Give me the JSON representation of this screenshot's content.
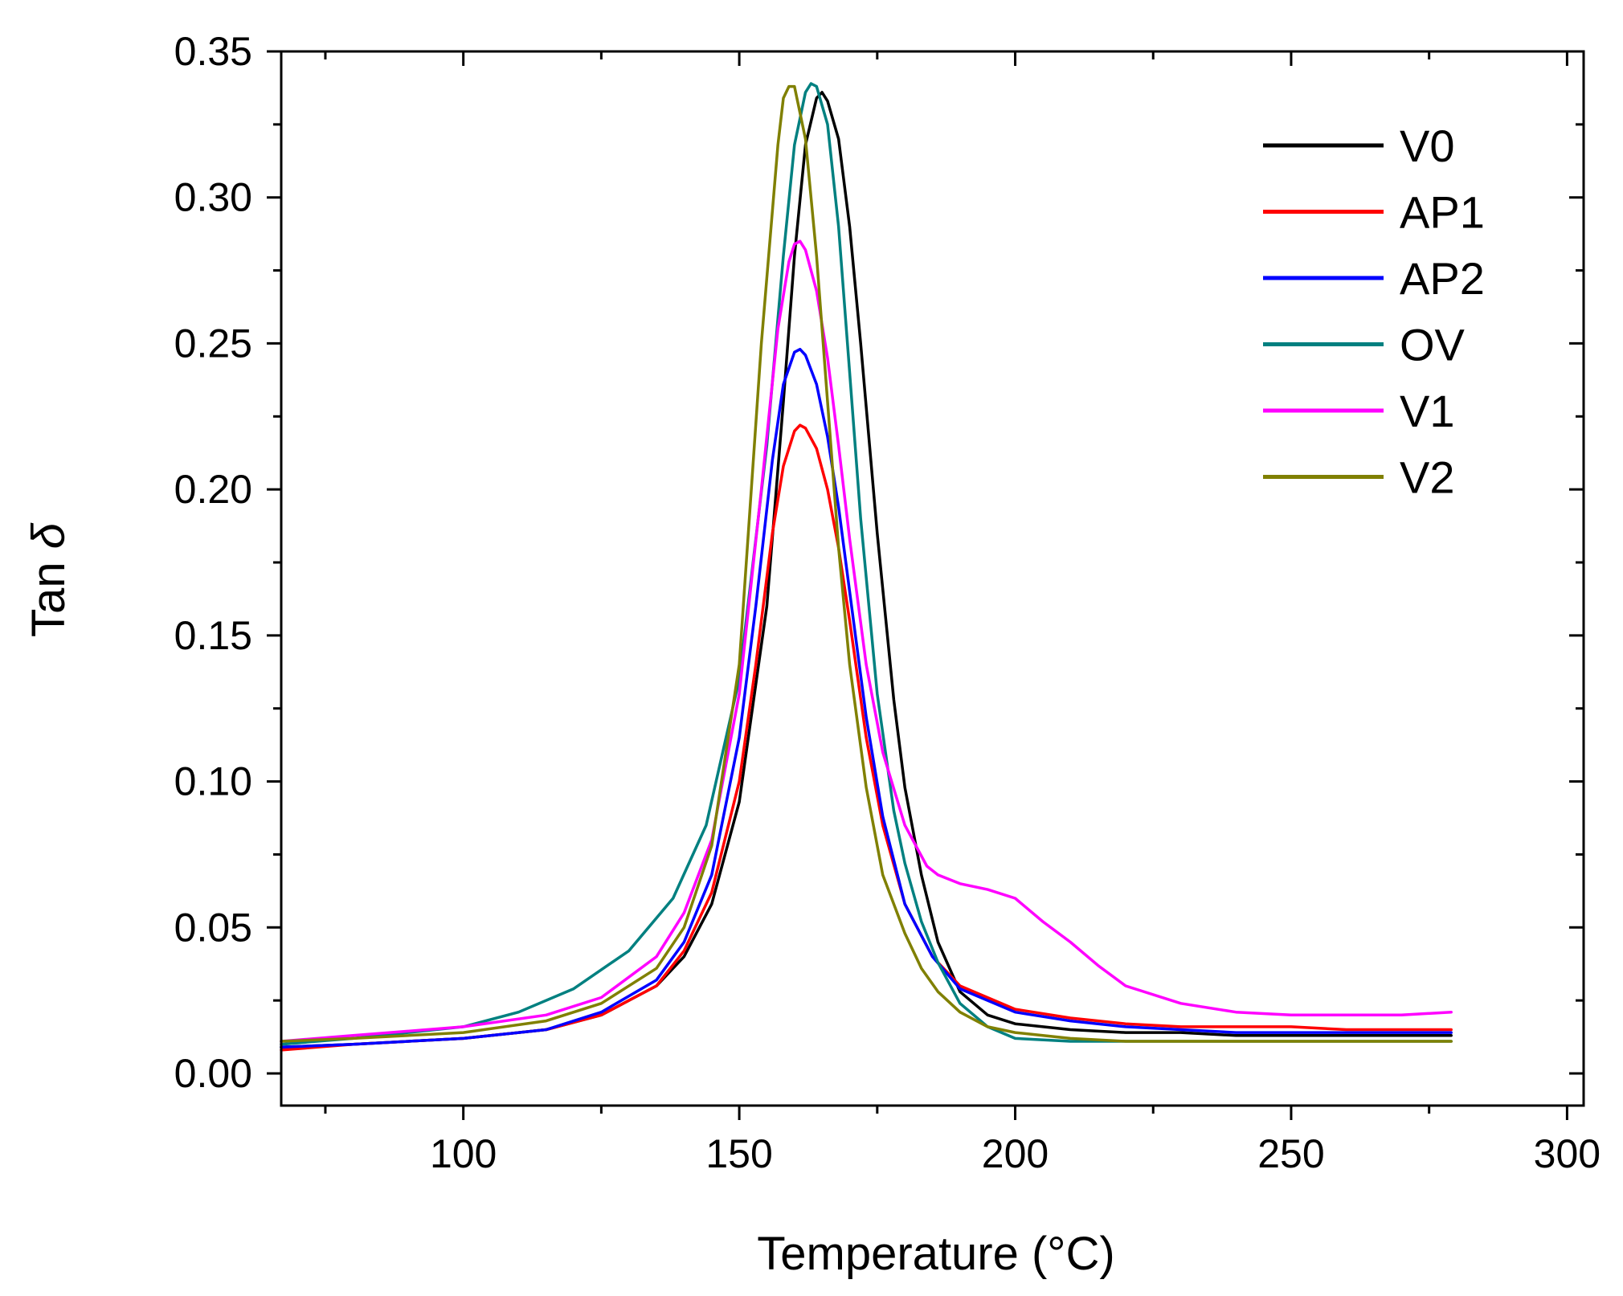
{
  "chart_data": {
    "type": "line",
    "title": "",
    "xlabel": "Temperature (°C)",
    "ylabel_main": "Tan ",
    "ylabel_symbol": "δ",
    "xlim": [
      67,
      303
    ],
    "ylim": [
      -0.011,
      0.35
    ],
    "x_ticks": [
      100,
      150,
      200,
      250,
      300
    ],
    "x_tick_labels": [
      "100",
      "150",
      "200",
      "250",
      "300"
    ],
    "y_ticks": [
      0.0,
      0.05,
      0.1,
      0.15,
      0.2,
      0.25,
      0.3,
      0.35
    ],
    "y_tick_labels": [
      "0.00",
      "0.05",
      "0.10",
      "0.15",
      "0.20",
      "0.25",
      "0.30",
      "0.35"
    ],
    "grid": false,
    "legend_position": "top-right",
    "series": [
      {
        "name": "V0",
        "color": "#000000",
        "x": [
          67,
          80,
          100,
          115,
          125,
          135,
          140,
          145,
          150,
          155,
          158,
          160,
          162,
          164,
          165,
          166,
          168,
          170,
          172,
          175,
          178,
          180,
          183,
          186,
          190,
          195,
          200,
          210,
          220,
          230,
          240,
          250,
          260,
          270,
          279
        ],
        "y": [
          0.009,
          0.01,
          0.012,
          0.015,
          0.02,
          0.03,
          0.04,
          0.058,
          0.093,
          0.16,
          0.23,
          0.28,
          0.318,
          0.334,
          0.336,
          0.333,
          0.32,
          0.29,
          0.25,
          0.185,
          0.128,
          0.098,
          0.068,
          0.045,
          0.028,
          0.02,
          0.017,
          0.015,
          0.014,
          0.014,
          0.013,
          0.013,
          0.013,
          0.013,
          0.013
        ]
      },
      {
        "name": "AP1",
        "color": "#ff0000",
        "x": [
          67,
          80,
          100,
          115,
          125,
          135,
          140,
          145,
          150,
          153,
          156,
          158,
          160,
          161,
          162,
          164,
          166,
          168,
          170,
          173,
          176,
          180,
          185,
          190,
          200,
          210,
          220,
          230,
          240,
          250,
          260,
          270,
          279
        ],
        "y": [
          0.008,
          0.01,
          0.012,
          0.015,
          0.02,
          0.03,
          0.042,
          0.062,
          0.1,
          0.14,
          0.185,
          0.208,
          0.22,
          0.222,
          0.221,
          0.214,
          0.2,
          0.18,
          0.155,
          0.115,
          0.085,
          0.058,
          0.04,
          0.03,
          0.022,
          0.019,
          0.017,
          0.016,
          0.016,
          0.016,
          0.015,
          0.015,
          0.015
        ]
      },
      {
        "name": "AP2",
        "color": "#0000ff",
        "x": [
          67,
          80,
          100,
          115,
          125,
          135,
          140,
          145,
          150,
          153,
          156,
          158,
          160,
          161,
          162,
          164,
          166,
          168,
          170,
          173,
          176,
          180,
          185,
          190,
          200,
          210,
          220,
          230,
          240,
          250,
          260,
          270,
          279
        ],
        "y": [
          0.009,
          0.01,
          0.012,
          0.015,
          0.021,
          0.032,
          0.045,
          0.068,
          0.115,
          0.16,
          0.21,
          0.236,
          0.247,
          0.248,
          0.246,
          0.236,
          0.218,
          0.194,
          0.165,
          0.122,
          0.088,
          0.058,
          0.04,
          0.029,
          0.021,
          0.018,
          0.016,
          0.015,
          0.014,
          0.014,
          0.014,
          0.014,
          0.014
        ]
      },
      {
        "name": "OV",
        "color": "#008080",
        "x": [
          67,
          80,
          100,
          110,
          120,
          130,
          138,
          144,
          150,
          155,
          158,
          160,
          162,
          163,
          164,
          166,
          168,
          170,
          172,
          175,
          178,
          180,
          183,
          186,
          190,
          195,
          200,
          210,
          220,
          230,
          240,
          250,
          260,
          270,
          279
        ],
        "y": [
          0.01,
          0.012,
          0.016,
          0.021,
          0.029,
          0.042,
          0.06,
          0.085,
          0.135,
          0.215,
          0.28,
          0.318,
          0.336,
          0.339,
          0.338,
          0.325,
          0.29,
          0.24,
          0.19,
          0.13,
          0.09,
          0.072,
          0.052,
          0.038,
          0.024,
          0.016,
          0.012,
          0.011,
          0.011,
          0.011,
          0.011,
          0.011,
          0.011,
          0.011,
          0.011
        ]
      },
      {
        "name": "V1",
        "color": "#ff00ff",
        "x": [
          67,
          80,
          100,
          115,
          125,
          135,
          140,
          145,
          150,
          154,
          157,
          159,
          160,
          161,
          162,
          164,
          166,
          168,
          170,
          173,
          176,
          180,
          184,
          186,
          190,
          195,
          200,
          205,
          210,
          215,
          220,
          230,
          240,
          250,
          260,
          270,
          279
        ],
        "y": [
          0.011,
          0.013,
          0.016,
          0.02,
          0.026,
          0.04,
          0.055,
          0.08,
          0.13,
          0.2,
          0.255,
          0.278,
          0.284,
          0.285,
          0.282,
          0.268,
          0.245,
          0.215,
          0.183,
          0.14,
          0.11,
          0.085,
          0.071,
          0.068,
          0.065,
          0.063,
          0.06,
          0.052,
          0.045,
          0.037,
          0.03,
          0.024,
          0.021,
          0.02,
          0.02,
          0.02,
          0.021
        ]
      },
      {
        "name": "V2",
        "color": "#808000",
        "x": [
          67,
          80,
          100,
          115,
          125,
          135,
          140,
          145,
          150,
          154,
          157,
          158,
          159,
          160,
          162,
          164,
          166,
          168,
          170,
          173,
          176,
          180,
          183,
          186,
          190,
          195,
          200,
          210,
          220,
          230,
          240,
          250,
          260,
          270,
          279
        ],
        "y": [
          0.011,
          0.012,
          0.014,
          0.018,
          0.024,
          0.036,
          0.05,
          0.078,
          0.14,
          0.25,
          0.318,
          0.334,
          0.338,
          0.338,
          0.32,
          0.28,
          0.23,
          0.18,
          0.14,
          0.098,
          0.068,
          0.048,
          0.036,
          0.028,
          0.021,
          0.016,
          0.014,
          0.012,
          0.011,
          0.011,
          0.011,
          0.011,
          0.011,
          0.011,
          0.011
        ]
      }
    ]
  }
}
